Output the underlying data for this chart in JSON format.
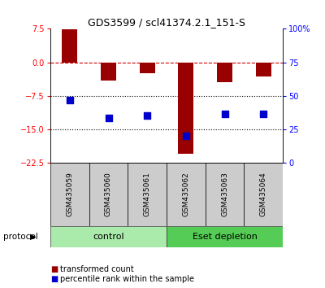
{
  "title": "GDS3599 / scl41374.2.1_151-S",
  "samples": [
    "GSM435059",
    "GSM435060",
    "GSM435061",
    "GSM435062",
    "GSM435063",
    "GSM435064"
  ],
  "bar_values": [
    7.3,
    -4.0,
    -2.5,
    -20.5,
    -4.5,
    -3.2
  ],
  "dot_values": [
    -8.5,
    -12.5,
    -12.0,
    -16.5,
    -11.5,
    -11.5
  ],
  "bar_color": "#990000",
  "dot_color": "#0000cc",
  "bar_width": 0.4,
  "left_ylim": [
    -22.5,
    7.5
  ],
  "right_ylim": [
    0,
    100
  ],
  "left_yticks": [
    7.5,
    0,
    -7.5,
    -15,
    -22.5
  ],
  "right_yticks": [
    100,
    75,
    50,
    25,
    0
  ],
  "right_yticklabels": [
    "100%",
    "75",
    "50",
    "25",
    "0"
  ],
  "hline_zero_color": "#cc0000",
  "hline_zero_style": "--",
  "hlines_dotted": [
    -7.5,
    -15
  ],
  "protocol_split": 3,
  "control_label": "control",
  "eset_label": "Eset depletion",
  "control_color": "#aaeaaa",
  "eset_color": "#55cc55",
  "sample_box_color": "#cccccc",
  "legend_red_label": "transformed count",
  "legend_blue_label": "percentile rank within the sample",
  "protocol_text": "protocol",
  "title_fontsize": 9,
  "tick_fontsize": 7,
  "label_fontsize": 7,
  "background_color": "#ffffff"
}
